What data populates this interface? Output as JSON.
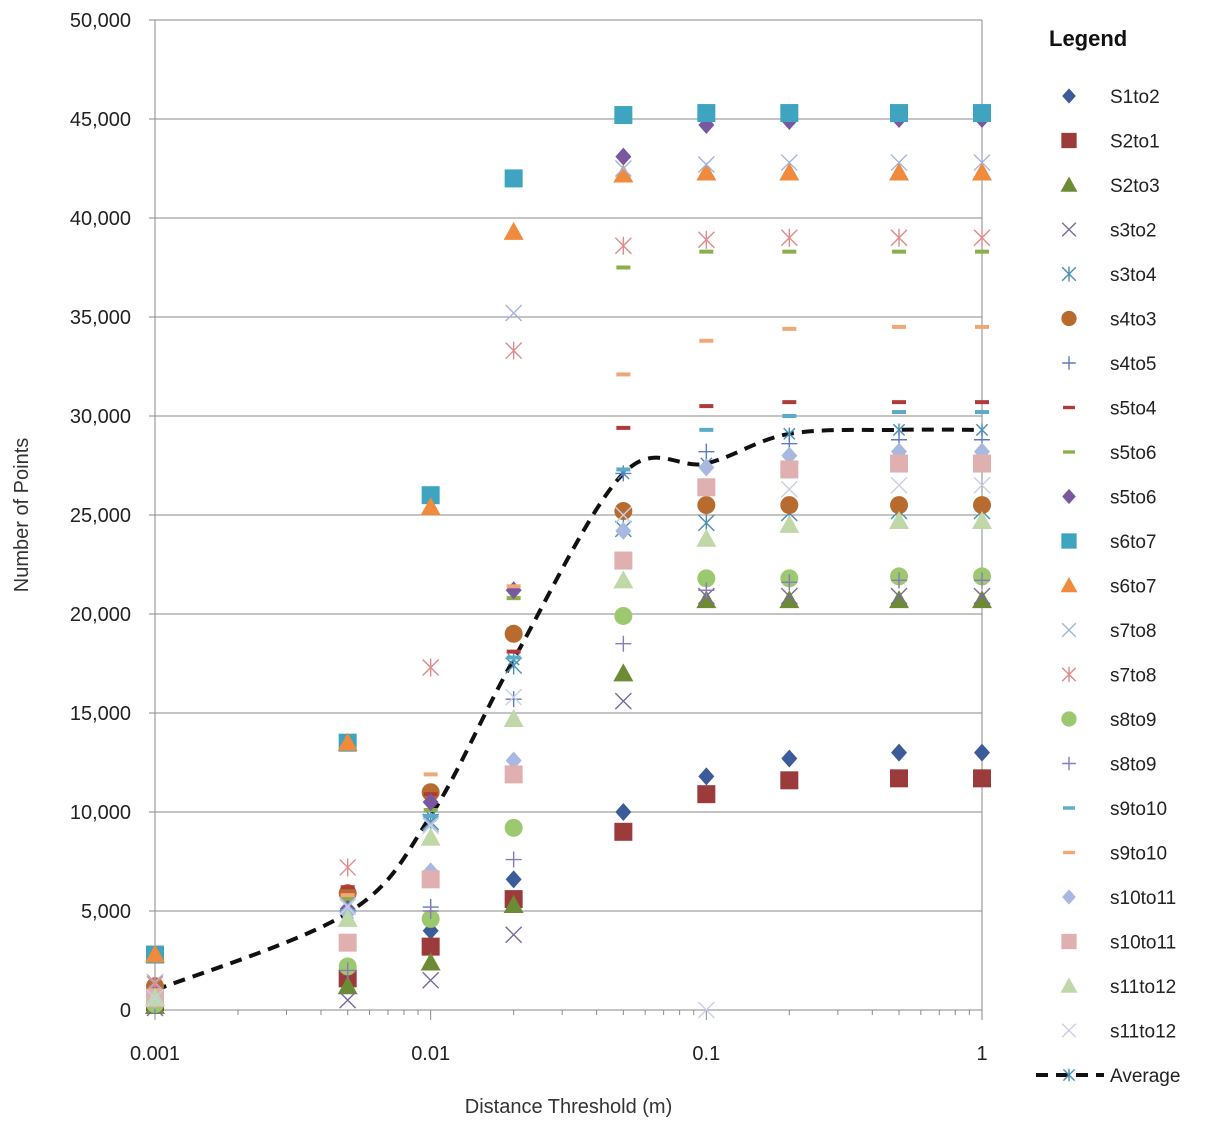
{
  "chart_data": {
    "type": "scatter",
    "title": "",
    "xlabel": "Distance Threshold (m)",
    "ylabel": "Number of Points",
    "xscale": "log",
    "xlim": [
      0.001,
      1
    ],
    "ylim": [
      0,
      50000
    ],
    "x_ticks": [
      0.001,
      0.01,
      0.1,
      1
    ],
    "x_tick_labels": [
      "0.001",
      "0.01",
      "0.1",
      "1"
    ],
    "y_ticks": [
      0,
      5000,
      10000,
      15000,
      20000,
      25000,
      30000,
      35000,
      40000,
      45000,
      50000
    ],
    "y_tick_labels": [
      "0",
      "5,000",
      "10,000",
      "15,000",
      "20,000",
      "25,000",
      "30,000",
      "35,000",
      "40,000",
      "45,000",
      "50,000"
    ],
    "grid": "horizontal",
    "legend": {
      "title": "Legend",
      "position": "right"
    },
    "x": [
      0.001,
      0.005,
      0.01,
      0.02,
      0.05,
      0.1,
      0.2,
      0.5,
      1
    ],
    "series": [
      {
        "name": "S1to2",
        "marker": "diamond",
        "color": "#3b5c98",
        "values": [
          300,
          1800,
          4000,
          6600,
          10000,
          11800,
          12700,
          13000,
          13000
        ]
      },
      {
        "name": "S2to1",
        "marker": "square",
        "color": "#9b3b3b",
        "values": [
          400,
          1600,
          3200,
          5600,
          9000,
          10900,
          11600,
          11700,
          11700
        ]
      },
      {
        "name": "S2to3",
        "marker": "triangle",
        "color": "#6b8c35",
        "values": [
          200,
          1200,
          2400,
          5300,
          17000,
          20700,
          20700,
          20700,
          20700
        ]
      },
      {
        "name": "s3to2",
        "marker": "x",
        "color": "#7b6a9c",
        "values": [
          100,
          500,
          1500,
          3800,
          15600,
          20900,
          20900,
          20900,
          20900
        ]
      },
      {
        "name": "s3to4",
        "marker": "star",
        "color": "#4a8fb5",
        "values": [
          600,
          5400,
          9500,
          17400,
          24300,
          24600,
          25100,
          25200,
          25200
        ]
      },
      {
        "name": "s4to3",
        "marker": "circle",
        "color": "#b86b2e",
        "values": [
          1200,
          5900,
          11000,
          19000,
          25200,
          25500,
          25500,
          25500,
          25500
        ]
      },
      {
        "name": "s4to5",
        "marker": "plus",
        "color": "#5b7cc4",
        "values": [
          200,
          2000,
          5200,
          15700,
          27100,
          28200,
          28600,
          28800,
          28800
        ]
      },
      {
        "name": "s5to4",
        "marker": "dash",
        "color": "#b03a3a",
        "values": [
          900,
          6200,
          10900,
          18100,
          29400,
          30500,
          30700,
          30700,
          30700
        ]
      },
      {
        "name": "s5to6",
        "marker": "dash",
        "color": "#8ab04a",
        "values": [
          700,
          5600,
          10100,
          20800,
          37500,
          38300,
          38300,
          38300,
          38300
        ]
      },
      {
        "name": "s5to6",
        "marker": "diamond",
        "color": "#7a58a0",
        "values": [
          800,
          5100,
          10500,
          21200,
          43100,
          44700,
          44900,
          45000,
          45000
        ]
      },
      {
        "name": "s6to7",
        "marker": "square",
        "color": "#3ea4c0",
        "values": [
          2800,
          13500,
          26000,
          42000,
          45200,
          45300,
          45300,
          45300,
          45300
        ]
      },
      {
        "name": "s6to7",
        "marker": "triangle",
        "color": "#f08a3c",
        "values": [
          2800,
          13500,
          25400,
          39300,
          42200,
          42300,
          42300,
          42300,
          42300
        ]
      },
      {
        "name": "s7to8",
        "marker": "x",
        "color": "#a0b4e0",
        "values": [
          1400,
          5300,
          9400,
          35200,
          42500,
          42700,
          42800,
          42800,
          42800
        ]
      },
      {
        "name": "s7to8",
        "marker": "star",
        "color": "#e08a8a",
        "values": [
          1300,
          7200,
          17300,
          33300,
          38600,
          38900,
          39000,
          39000,
          39000
        ]
      },
      {
        "name": "s8to9",
        "marker": "circle",
        "color": "#9cc870",
        "values": [
          300,
          2200,
          4600,
          9200,
          19900,
          21800,
          21800,
          21900,
          21900
        ]
      },
      {
        "name": "s8to9",
        "marker": "plus",
        "color": "#8a7ab8",
        "values": [
          250,
          2000,
          5000,
          7600,
          18500,
          21200,
          21600,
          21700,
          21700
        ]
      },
      {
        "name": "s9to10",
        "marker": "dash",
        "color": "#5aaac8",
        "values": [
          900,
          5000,
          9800,
          17800,
          27300,
          29300,
          30000,
          30200,
          30200
        ]
      },
      {
        "name": "s9to10",
        "marker": "dash",
        "color": "#f0a878",
        "values": [
          1000,
          5800,
          11900,
          21400,
          32100,
          33800,
          34400,
          34500,
          34500
        ]
      },
      {
        "name": "s10to11",
        "marker": "diamond",
        "color": "#a8b8e0",
        "values": [
          500,
          4900,
          7000,
          12600,
          24200,
          27400,
          28000,
          28200,
          28200
        ]
      },
      {
        "name": "s10to11",
        "marker": "square",
        "color": "#e0b0b0",
        "values": [
          600,
          3400,
          6600,
          11900,
          22700,
          26400,
          27300,
          27600,
          27600
        ]
      },
      {
        "name": "s11to12",
        "marker": "triangle",
        "color": "#c0d8a8",
        "values": [
          600,
          4600,
          8700,
          14700,
          21700,
          23800,
          24500,
          24700,
          24700
        ]
      },
      {
        "name": "s11to12",
        "marker": "x",
        "color": "#c8d0e8",
        "values": [
          600,
          5200,
          9300,
          15800,
          25000,
          0,
          26300,
          26500,
          26500
        ]
      },
      {
        "name": "Average",
        "marker": "star",
        "color": "#111111",
        "line": "dashed",
        "values": [
          1000,
          4900,
          9800,
          17700,
          27100,
          27600,
          29100,
          29300,
          29300
        ]
      }
    ]
  }
}
